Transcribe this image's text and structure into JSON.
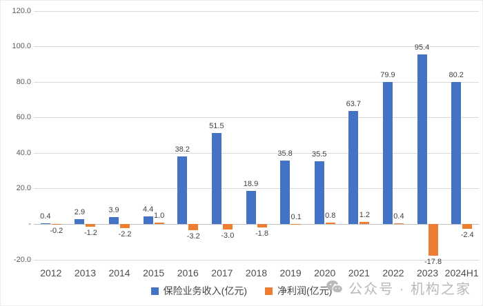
{
  "chart_data": {
    "type": "bar",
    "title": "",
    "categories": [
      "2012",
      "2013",
      "2014",
      "2015",
      "2016",
      "2017",
      "2018",
      "2019",
      "2020",
      "2021",
      "2022",
      "2023",
      "2024H1"
    ],
    "series": [
      {
        "name": "保险业务收入(亿元)",
        "color": "#4472C4",
        "values": [
          0.4,
          2.9,
          3.9,
          4.4,
          38.2,
          51.5,
          18.9,
          35.8,
          35.5,
          63.7,
          79.9,
          95.4,
          80.2
        ]
      },
      {
        "name": "净利润(亿元)",
        "color": "#ED7D31",
        "values": [
          -0.2,
          -1.2,
          -2.2,
          1.0,
          -3.2,
          -3.0,
          -1.8,
          0.1,
          0.8,
          1.2,
          0.4,
          -17.8,
          -2.4
        ]
      }
    ],
    "ylim": [
      -20,
      120
    ],
    "ytick_values": [
      120,
      100,
      80,
      60,
      40,
      20,
      0,
      -20
    ],
    "ytick_labels": [
      "120.0",
      "100.0",
      "80.0",
      "60.0",
      "40.0",
      "20.0",
      "-",
      "-20.0"
    ],
    "grid": true,
    "legend_position": "bottom",
    "data_labels": true
  },
  "watermark": {
    "icon": "wechat-icon",
    "text": "公众号 · 机构之家",
    "color": "#b9b9b9"
  }
}
